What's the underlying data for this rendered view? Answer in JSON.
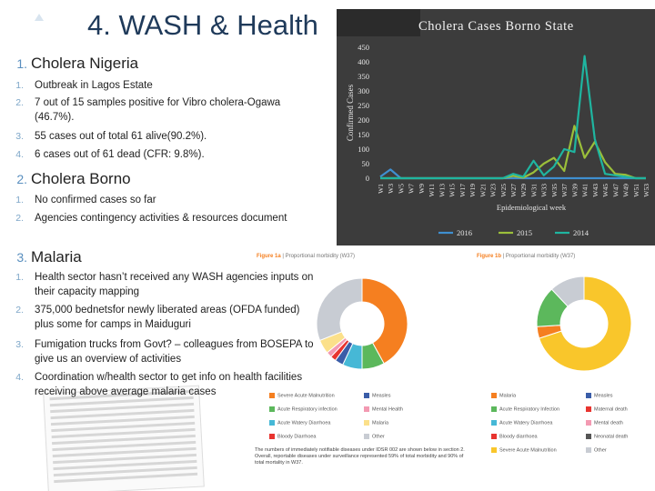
{
  "slide": {
    "title": "4. WASH & Health",
    "sections": [
      {
        "number": "1.",
        "heading": "Cholera Nigeria",
        "items": [
          {
            "n": "1.",
            "text": "Outbreak in Lagos Estate"
          },
          {
            "n": "2.",
            "text": "7 out of 15 samples positive for Vibro cholera-Ogawa (46.7%)."
          },
          {
            "n": "3.",
            "text": "55 cases out of total 61 alive(90.2%)."
          },
          {
            "n": "4.",
            "text": "6 cases out of 61 dead (CFR: 9.8%)."
          }
        ]
      },
      {
        "number": "2.",
        "heading": "Cholera Borno",
        "items": [
          {
            "n": "1.",
            "text": "No confirmed cases so far"
          },
          {
            "n": "2.",
            "text": "Agencies contingency activities & resources document"
          }
        ]
      },
      {
        "number": "3.",
        "heading": "Malaria",
        "items": [
          {
            "n": "1.",
            "text": "Health sector hasn’t received any WASH agencies inputs on their capacity mapping"
          },
          {
            "n": "2.",
            "text": "375,000 bednetsfor newly liberated areas (OFDA funded) plus some for camps in Maiduguri"
          },
          {
            "n": "3.",
            "text": "Fumigation trucks from Govt? – colleagues from BOSEPA to give us an overview of activities"
          },
          {
            "n": "4.",
            "text": "Coordination w/health sector to get info on health facilities receiving above average malaria cases"
          }
        ]
      }
    ]
  },
  "chart_data": {
    "type": "line",
    "title": "Cholera Cases Borno State",
    "ylabel": "Confirmed Cases",
    "xlabel": "Epidemiological week",
    "ylim": [
      0,
      450
    ],
    "yticks": [
      0,
      50,
      100,
      150,
      200,
      250,
      300,
      350,
      400,
      450
    ],
    "x": [
      "W1",
      "W3",
      "W5",
      "W7",
      "W9",
      "W11",
      "W13",
      "W15",
      "W17",
      "W19",
      "W21",
      "W23",
      "W25",
      "W27",
      "W29",
      "W31",
      "W33",
      "W35",
      "W37",
      "W39",
      "W41",
      "W43",
      "W45",
      "W47",
      "W49",
      "W51",
      "W53"
    ],
    "series": [
      {
        "name": "2016",
        "color": "#3f8fd0",
        "values": [
          5,
          30,
          0,
          0,
          0,
          0,
          0,
          0,
          0,
          0,
          0,
          0,
          0,
          0,
          0,
          0,
          0,
          0,
          0,
          0,
          0,
          0,
          0,
          0,
          0,
          0,
          0
        ]
      },
      {
        "name": "2015",
        "color": "#9bbf3a",
        "values": [
          0,
          0,
          0,
          0,
          0,
          0,
          0,
          0,
          0,
          0,
          0,
          0,
          0,
          8,
          2,
          20,
          50,
          70,
          25,
          180,
          70,
          125,
          55,
          15,
          12,
          0,
          0
        ]
      },
      {
        "name": "2014",
        "color": "#1fb5a0",
        "values": [
          0,
          0,
          0,
          0,
          0,
          0,
          0,
          0,
          0,
          0,
          0,
          0,
          0,
          15,
          5,
          60,
          10,
          40,
          100,
          90,
          420,
          135,
          15,
          10,
          5,
          0,
          0
        ]
      }
    ],
    "legend": "bottom"
  },
  "figures": {
    "fig1a_title_bold": "Figure 1a",
    "fig1a_title_rest": "| Proportional morbidity (W37)",
    "fig1b_title_bold": "Figure 1b",
    "fig1b_title_rest": "| Proportional morbidity (W37)",
    "pie_a": {
      "slices": [
        {
          "label": "Severe Acute Malnutrition",
          "value": 42,
          "color": "#f57f20"
        },
        {
          "label": "Acute Respiratory infection",
          "value": 8,
          "color": "#5cb85c"
        },
        {
          "label": "Acute Watery Diarrhoea",
          "value": 7,
          "color": "#46b8d6"
        },
        {
          "label": "Measles",
          "value": 3,
          "color": "#3a5da8"
        },
        {
          "label": "Bloody diarrhoea",
          "value": 2,
          "color": "#e8342f"
        },
        {
          "label": "Mental Health",
          "value": 2,
          "color": "#f39ab2"
        },
        {
          "label": "Malaria",
          "value": 5,
          "color": "#fbe08a"
        },
        {
          "label": "Other",
          "value": 31,
          "color": "#c8ccd3"
        }
      ],
      "legend": [
        "Severe Acute Malnutrition",
        "Measles",
        "Acute Respiratory infection",
        "Mental Health",
        "Acute Watery Diarrhoea",
        "Malaria",
        "Bloody Diarrhoea",
        "Other"
      ]
    },
    "pie_b": {
      "slices": [
        {
          "label": "Severe Acute Malnutrition",
          "value": 70,
          "color": "#f9c62b"
        },
        {
          "label": "Malaria",
          "value": 4,
          "color": "#f57f20"
        },
        {
          "label": "Acute Respiratory Infection",
          "value": 14,
          "color": "#5cb85c"
        },
        {
          "label": "Other",
          "value": 12,
          "color": "#c8ccd3"
        }
      ],
      "legend": [
        "Malaria",
        "Measles",
        "Acute Respiratory Infection",
        "Maternal death",
        "Acute Watery Diarrhoea",
        "Mental death",
        "Bloody diarrhoea",
        "Neonatal death",
        "Severe Acute Malnutrition",
        "Other"
      ],
      "legend_colors": [
        "#f57f20",
        "#3a5da8",
        "#5cb85c",
        "#e8342f",
        "#46b8d6",
        "#f39ab2",
        "#e8342f",
        "#555555",
        "#f9c62b",
        "#c8ccd3"
      ]
    },
    "note": "The numbers of immediately notifiable diseases under IDSR 002 are shown below in section 2. Overall, reportable diseases under surveillance represented 59% of total morbidity and 90% of total mortality in W37."
  }
}
